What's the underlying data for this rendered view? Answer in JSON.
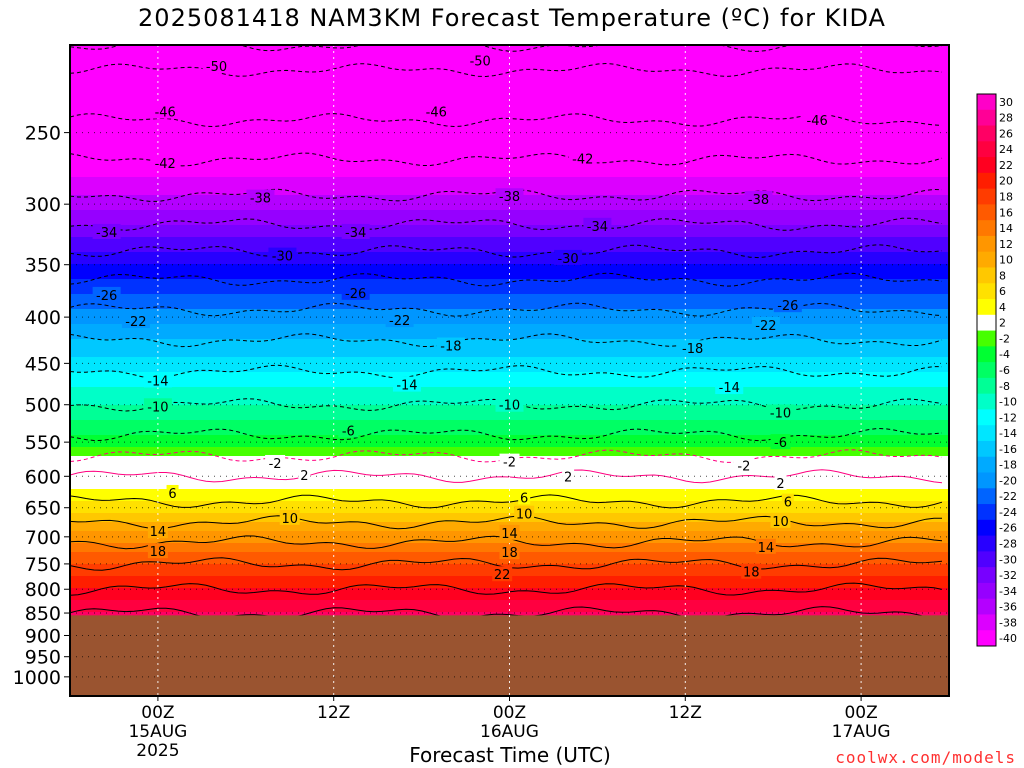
{
  "title": "2025081418 NAM3KM Forecast Temperature (ºC) for KIDA",
  "xlabel": "Forecast Time (UTC)",
  "credit": "coolwx.com/models",
  "chart_data": {
    "type": "heatmap",
    "title": "2025081418 NAM3KM Forecast Temperature (ºC) for KIDA",
    "xlabel": "Forecast Time (UTC)",
    "ylabel": "",
    "y_scale": "log-pressure",
    "ylim": [
      1050,
      200
    ],
    "y_ticks": [
      250,
      300,
      350,
      400,
      450,
      500,
      550,
      600,
      650,
      700,
      750,
      800,
      850,
      900,
      950,
      1000
    ],
    "x_ticks": [
      {
        "hour": 6,
        "label": "00Z",
        "sub1": "15AUG",
        "sub2": "2025"
      },
      {
        "hour": 18,
        "label": "12Z",
        "sub1": "",
        "sub2": ""
      },
      {
        "hour": 30,
        "label": "00Z",
        "sub1": "16AUG",
        "sub2": ""
      },
      {
        "hour": 42,
        "label": "12Z",
        "sub1": "",
        "sub2": ""
      },
      {
        "hour": 54,
        "label": "00Z",
        "sub1": "17AUG",
        "sub2": ""
      }
    ],
    "x_range_hours": [
      0,
      60
    ],
    "ground_pressure_hpa": 855,
    "ground_color": "#9a5430",
    "colorbar": {
      "labels": [
        "30",
        "28",
        "26",
        "24",
        "22",
        "20",
        "18",
        "16",
        "14",
        "12",
        "10",
        "8",
        "6",
        "4",
        "2",
        "-2",
        "-4",
        "-6",
        "-8",
        "-10",
        "-12",
        "-14",
        "-16",
        "-18",
        "-20",
        "-22",
        "-24",
        "-26",
        "-28",
        "-30",
        "-32",
        "-34",
        "-36",
        "-38",
        "-40"
      ],
      "colors": [
        "#ff00c8",
        "#ff0096",
        "#ff0064",
        "#ff0040",
        "#ff0020",
        "#ff1e00",
        "#ff3c00",
        "#ff5a00",
        "#ff7800",
        "#ff9600",
        "#ffaa00",
        "#ffc800",
        "#ffe100",
        "#ffff00",
        "#ffffff",
        "#46ff00",
        "#00ff32",
        "#00ff64",
        "#00ff96",
        "#00ffc8",
        "#00ffff",
        "#00e6ff",
        "#00c8ff",
        "#00aaff",
        "#0096ff",
        "#0064ff",
        "#0032ff",
        "#0000ff",
        "#2800ff",
        "#5000ff",
        "#7800ff",
        "#9600ff",
        "#b400ff",
        "#dc00ff",
        "#ff00ff"
      ]
    },
    "temperature_profile": {
      "pressure_hpa": [
        200,
        250,
        300,
        350,
        400,
        450,
        500,
        550,
        570,
        600,
        650,
        700,
        750,
        800,
        850
      ],
      "temp_c": [
        -52,
        -45,
        -37,
        -28,
        -21,
        -15,
        -10,
        -5,
        -2,
        2,
        7,
        13,
        18,
        22,
        26
      ]
    },
    "contour_labels": [
      {
        "value": "-50",
        "hour": 10.0,
        "p": 211
      },
      {
        "value": "-50",
        "hour": 28.0,
        "p": 208
      },
      {
        "value": "-46",
        "hour": 6.5,
        "p": 237
      },
      {
        "value": "-46",
        "hour": 25.0,
        "p": 237
      },
      {
        "value": "-46",
        "hour": 51.0,
        "p": 242
      },
      {
        "value": "-42",
        "hour": 6.5,
        "p": 270
      },
      {
        "value": "-42",
        "hour": 35.0,
        "p": 267
      },
      {
        "value": "-38",
        "hour": 13.0,
        "p": 295
      },
      {
        "value": "-38",
        "hour": 30.0,
        "p": 294
      },
      {
        "value": "-38",
        "hour": 47.0,
        "p": 296
      },
      {
        "value": "-34",
        "hour": 2.5,
        "p": 322
      },
      {
        "value": "-34",
        "hour": 19.5,
        "p": 322
      },
      {
        "value": "-34",
        "hour": 36.0,
        "p": 317
      },
      {
        "value": "-30",
        "hour": 14.5,
        "p": 342
      },
      {
        "value": "-30",
        "hour": 34.0,
        "p": 344
      },
      {
        "value": "-26",
        "hour": 2.5,
        "p": 378
      },
      {
        "value": "-26",
        "hour": 19.5,
        "p": 376
      },
      {
        "value": "-26",
        "hour": 49.0,
        "p": 388
      },
      {
        "value": "-22",
        "hour": 4.5,
        "p": 404
      },
      {
        "value": "-22",
        "hour": 22.5,
        "p": 403
      },
      {
        "value": "-22",
        "hour": 47.5,
        "p": 408
      },
      {
        "value": "-18",
        "hour": 26.0,
        "p": 430
      },
      {
        "value": "-18",
        "hour": 42.5,
        "p": 433
      },
      {
        "value": "-14",
        "hour": 6.0,
        "p": 470
      },
      {
        "value": "-14",
        "hour": 23.0,
        "p": 475
      },
      {
        "value": "-14",
        "hour": 45.0,
        "p": 478
      },
      {
        "value": "-10",
        "hour": 6.0,
        "p": 502
      },
      {
        "value": "-10",
        "hour": 30.0,
        "p": 500
      },
      {
        "value": "-10",
        "hour": 48.5,
        "p": 510
      },
      {
        "value": "-6",
        "hour": 19.0,
        "p": 534
      },
      {
        "value": "-6",
        "hour": 48.5,
        "p": 550
      },
      {
        "value": "-2",
        "hour": 14.0,
        "p": 580
      },
      {
        "value": "-2",
        "hour": 30.0,
        "p": 578
      },
      {
        "value": "-2",
        "hour": 46.0,
        "p": 584
      },
      {
        "value": "2",
        "hour": 16.0,
        "p": 598
      },
      {
        "value": "2",
        "hour": 34.0,
        "p": 600
      },
      {
        "value": "2",
        "hour": 48.5,
        "p": 610
      },
      {
        "value": "6",
        "hour": 7.0,
        "p": 626
      },
      {
        "value": "6",
        "hour": 31.0,
        "p": 633
      },
      {
        "value": "6",
        "hour": 49.0,
        "p": 640
      },
      {
        "value": "10",
        "hour": 15.0,
        "p": 667
      },
      {
        "value": "10",
        "hour": 31.0,
        "p": 660
      },
      {
        "value": "10",
        "hour": 48.5,
        "p": 672
      },
      {
        "value": "14",
        "hour": 6.0,
        "p": 690
      },
      {
        "value": "14",
        "hour": 30.0,
        "p": 693
      },
      {
        "value": "14",
        "hour": 47.5,
        "p": 718
      },
      {
        "value": "18",
        "hour": 6.0,
        "p": 726
      },
      {
        "value": "18",
        "hour": 30.0,
        "p": 728
      },
      {
        "value": "18",
        "hour": 46.5,
        "p": 765
      },
      {
        "value": "22",
        "hour": 29.5,
        "p": 770
      }
    ]
  }
}
